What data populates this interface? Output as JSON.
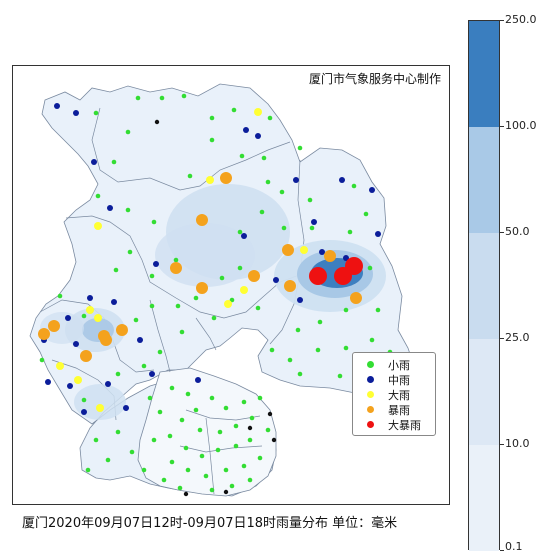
{
  "credit": "厦门市气象服务中心制作",
  "caption": "厦门2020年09月07日12时-09月07日18时雨量分布 单位：毫米",
  "legend": [
    {
      "label": "小雨",
      "color": "#33dd33"
    },
    {
      "label": "中雨",
      "color": "#0b1d9a"
    },
    {
      "label": "大雨",
      "color": "#ffff33"
    },
    {
      "label": "暴雨",
      "color": "#f4a21d"
    },
    {
      "label": "大暴雨",
      "color": "#ee1111"
    }
  ],
  "colorbar": {
    "ticks": [
      "250.0",
      "100.0",
      "50.0",
      "25.0",
      "10.0",
      "0.1"
    ],
    "colors": [
      "#3a7ebf",
      "#a9c9e7",
      "#c9dcef",
      "#dde8f5",
      "#eaf1f9"
    ]
  },
  "shading_colors": {
    "base": "#e9f1fa",
    "medium": "#cfe0f1",
    "heavy": "#a8c8e6",
    "core": "#3d7fc0",
    "border": "#7a8aa0"
  }
}
